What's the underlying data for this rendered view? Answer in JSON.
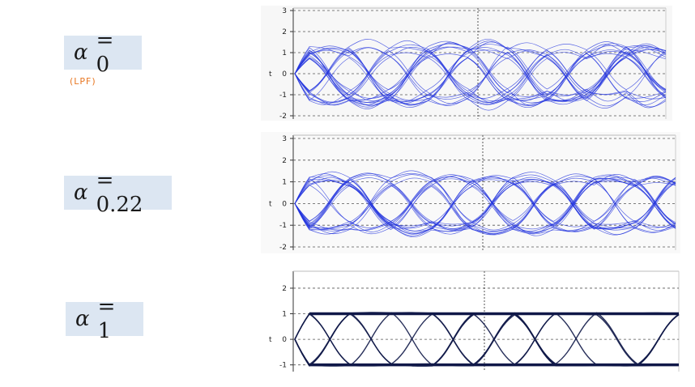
{
  "labels": [
    {
      "symbol": "α",
      "text": "= 0"
    },
    {
      "symbol": "α",
      "text": "= 0.22"
    },
    {
      "symbol": "α",
      "text": "= 1"
    }
  ],
  "annotation": "(LPF)",
  "colors": {
    "box": "#dce6f2",
    "trace_blue": "#2233dd",
    "trace_dark": "#101848",
    "annotation": "#e87722"
  },
  "chart_data": [
    {
      "type": "line",
      "title": "",
      "xlabel": "",
      "ylabel": "t",
      "ylim": [
        -2,
        3
      ],
      "yticks": [
        3,
        2,
        1,
        0,
        -1,
        -2
      ],
      "rolloff": 0,
      "num_eyes": 9,
      "levels": [
        -1,
        1
      ],
      "overshoot": 2.1,
      "grid": true,
      "color": "#2233dd"
    },
    {
      "type": "line",
      "title": "",
      "xlabel": "",
      "ylabel": "t",
      "ylim": [
        -2,
        3
      ],
      "yticks": [
        3,
        2,
        1,
        0,
        -1,
        -2
      ],
      "rolloff": 0.22,
      "num_eyes": 9,
      "levels": [
        -1,
        1
      ],
      "overshoot": 1.9,
      "grid": true,
      "color": "#2233dd"
    },
    {
      "type": "line",
      "title": "",
      "xlabel": "",
      "ylabel": "t",
      "ylim": [
        -1.2,
        2.6
      ],
      "yticks": [
        2,
        1,
        0,
        -1
      ],
      "rolloff": 1,
      "num_eyes": 9,
      "levels": [
        -1,
        1
      ],
      "overshoot": 1.05,
      "grid": true,
      "color": "#101848"
    }
  ]
}
